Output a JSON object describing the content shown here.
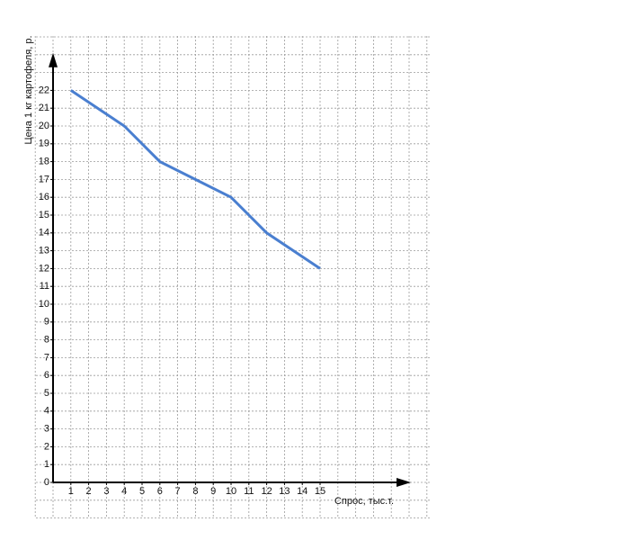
{
  "chart_data": {
    "type": "line",
    "y_label": "Цена 1 кг картофеля, р.",
    "x_label": "Спрос, тыс.т.",
    "x": [
      1,
      4,
      6,
      10,
      12,
      15
    ],
    "series": [
      {
        "color": "#4a7fd0",
        "values": [
          22,
          20,
          18,
          16,
          14,
          12
        ]
      }
    ],
    "xlim": [
      0,
      20
    ],
    "ylim": [
      0,
      24
    ],
    "xticks": [
      1,
      2,
      3,
      4,
      5,
      6,
      7,
      8,
      9,
      10,
      11,
      12,
      13,
      14,
      15
    ],
    "yticks": [
      0,
      1,
      2,
      3,
      4,
      5,
      6,
      7,
      8,
      9,
      10,
      11,
      12,
      13,
      14,
      15,
      16,
      17,
      18,
      19,
      20,
      21,
      22
    ],
    "grid": true
  }
}
